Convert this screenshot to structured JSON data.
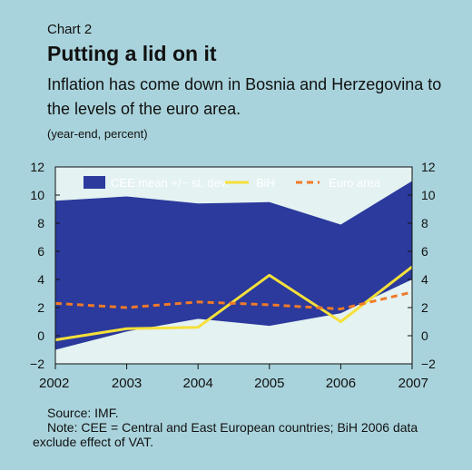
{
  "header": {
    "label": "Chart 2",
    "title": "Putting a lid on it",
    "subtitle": "Inflation has come down in Bosnia and Herzegovina to the levels of the euro area.",
    "units": "(year-end, percent)"
  },
  "footer": {
    "source": "Source: IMF.",
    "note": "Note: CEE = Central and East European countries; BiH 2006 data exclude effect of VAT."
  },
  "colors": {
    "background": "#a9d3dc",
    "plot_background": "#e4f2f2",
    "band": "#2b3a9c",
    "bih": "#f5e03a",
    "euro": "#f07a28"
  },
  "chart_data": {
    "type": "area",
    "x": [
      2002,
      2003,
      2004,
      2005,
      2006,
      2007
    ],
    "x_tick_labels": [
      "2002",
      "2003",
      "2004",
      "2005",
      "2006",
      "2007"
    ],
    "ylim": [
      -2,
      12
    ],
    "y_ticks": [
      -2,
      0,
      2,
      4,
      6,
      8,
      10,
      12
    ],
    "y_tick_labels": [
      "−2",
      "0",
      "2",
      "4",
      "6",
      "8",
      "10",
      "12"
    ],
    "grid": false,
    "legend_position": "top",
    "band": {
      "name": "CEE mean +/− st. dev.",
      "upper": [
        9.6,
        9.9,
        9.4,
        9.5,
        7.9,
        11.0
      ],
      "lower": [
        -1.0,
        0.3,
        1.2,
        0.7,
        1.6,
        4.0
      ]
    },
    "series": [
      {
        "name": "BiH",
        "values": [
          -0.3,
          0.5,
          0.6,
          4.3,
          1.0,
          4.9
        ]
      },
      {
        "name": "Euro area",
        "values": [
          2.3,
          2.0,
          2.4,
          2.2,
          1.9,
          3.1
        ]
      }
    ]
  }
}
